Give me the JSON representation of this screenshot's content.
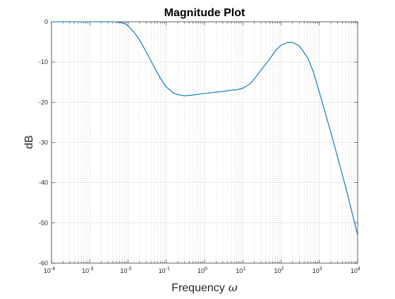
{
  "chart_data": {
    "type": "line",
    "title": "Magnitude Plot",
    "xlabel": "Frequency",
    "xlabel_symbol": "ω",
    "ylabel": "dB",
    "xscale": "log",
    "xlim": [
      0.0001,
      10000
    ],
    "ylim": [
      -60,
      0
    ],
    "x_ticks": [
      "10^-4",
      "10^-3",
      "10^-2",
      "10^-1",
      "10^0",
      "10^1",
      "10^2",
      "10^3",
      "10^4"
    ],
    "y_ticks": [
      -60,
      -50,
      -40,
      -30,
      -20,
      -10,
      0
    ],
    "grid": true,
    "minor_grid": true,
    "legend": "none",
    "series": [
      {
        "color": "#0072BD",
        "x": [
          0.0001,
          0.001,
          0.005,
          0.008,
          0.01,
          0.015,
          0.02,
          0.03,
          0.05,
          0.07,
          0.1,
          0.15,
          0.2,
          0.3,
          0.5,
          1,
          2,
          3,
          5,
          7,
          10,
          15,
          20,
          30,
          50,
          70,
          100,
          150,
          200,
          300,
          500,
          700,
          1000,
          2000,
          5000,
          10000
        ],
        "y": [
          0,
          0,
          0,
          -0.4,
          -1.0,
          -2.8,
          -4.5,
          -7.5,
          -11.5,
          -14.0,
          -16.2,
          -17.6,
          -18.1,
          -18.4,
          -18.2,
          -17.8,
          -17.5,
          -17.3,
          -17.0,
          -16.9,
          -16.5,
          -15.5,
          -14.2,
          -12.0,
          -9.3,
          -7.3,
          -5.8,
          -5.1,
          -5.1,
          -6.0,
          -9.0,
          -12.5,
          -17.5,
          -27.5,
          -41.5,
          -53.0
        ]
      }
    ]
  }
}
